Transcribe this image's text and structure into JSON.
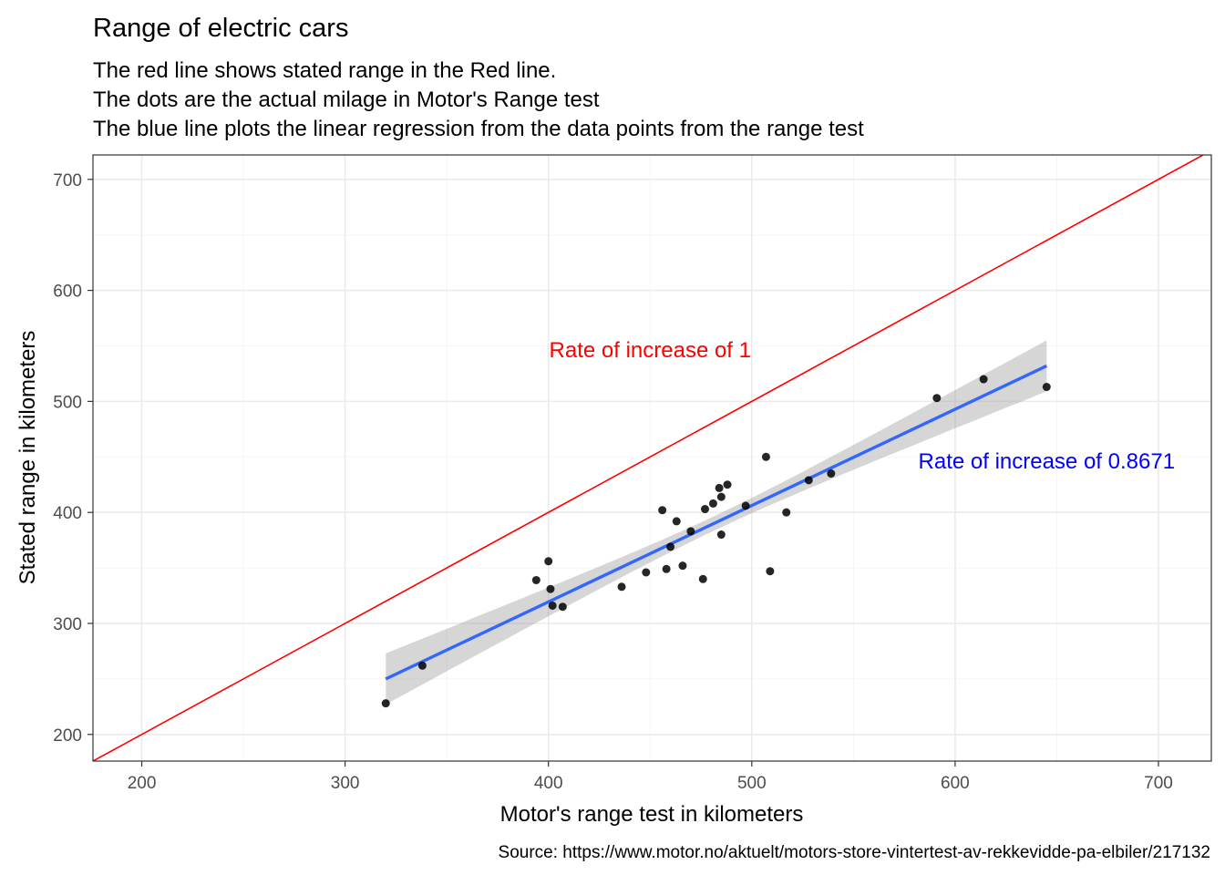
{
  "chart_data": {
    "type": "scatter",
    "title": "Range of electric cars",
    "subtitle": [
      "The red line shows stated range in the Red line.",
      "The dots are the actual milage in Motor's Range test",
      "The blue line plots the linear regression from the data points from the range test"
    ],
    "xlabel": "Motor's range test in kilometers",
    "ylabel": "Stated range in kilometers",
    "caption": "Source: https://www.motor.no/aktuelt/motors-store-vintertest-av-rekkevidde-pa-elbiler/217132",
    "xlim": [
      176,
      726
    ],
    "ylim": [
      176,
      722
    ],
    "x_ticks": [
      200,
      300,
      400,
      500,
      600,
      700
    ],
    "y_ticks": [
      200,
      300,
      400,
      500,
      600,
      700
    ],
    "grid": true,
    "colors": {
      "points": "#000000",
      "identity_line": "#FF0000",
      "regression_line": "#3366FF",
      "confidence_band": "#999999",
      "grid_major": "#EBEBEB",
      "grid_minor": "#F5F5F5",
      "panel_border": "#333333",
      "tick_text": "#4D4D4D"
    },
    "points": [
      {
        "x": 320,
        "y": 228
      },
      {
        "x": 338,
        "y": 262
      },
      {
        "x": 394,
        "y": 339
      },
      {
        "x": 400,
        "y": 356
      },
      {
        "x": 401,
        "y": 331
      },
      {
        "x": 402,
        "y": 316
      },
      {
        "x": 407,
        "y": 315
      },
      {
        "x": 436,
        "y": 333
      },
      {
        "x": 448,
        "y": 346
      },
      {
        "x": 456,
        "y": 402
      },
      {
        "x": 458,
        "y": 349
      },
      {
        "x": 460,
        "y": 369
      },
      {
        "x": 463,
        "y": 392
      },
      {
        "x": 466,
        "y": 352
      },
      {
        "x": 470,
        "y": 383
      },
      {
        "x": 476,
        "y": 340
      },
      {
        "x": 477,
        "y": 403
      },
      {
        "x": 481,
        "y": 408
      },
      {
        "x": 484,
        "y": 422
      },
      {
        "x": 485,
        "y": 414
      },
      {
        "x": 485,
        "y": 380
      },
      {
        "x": 488,
        "y": 425
      },
      {
        "x": 497,
        "y": 406
      },
      {
        "x": 507,
        "y": 450
      },
      {
        "x": 509,
        "y": 347
      },
      {
        "x": 517,
        "y": 400
      },
      {
        "x": 528,
        "y": 429
      },
      {
        "x": 539,
        "y": 435
      },
      {
        "x": 591,
        "y": 503
      },
      {
        "x": 614,
        "y": 520
      },
      {
        "x": 645,
        "y": 513
      }
    ],
    "identity_line": {
      "slope": 1,
      "intercept": 0
    },
    "regression": {
      "x_range": [
        320,
        645
      ],
      "slope": 0.8671,
      "y_at_start": 250,
      "y_at_end": 532,
      "ci_halfwidth_at_ends": 23,
      "ci_halfwidth_at_center": 6.5
    },
    "annotations": [
      {
        "text": "Rate of increase of 1",
        "x": 450,
        "y": 547,
        "color": "#FF0000"
      },
      {
        "text": "Rate of increase of 0.8671",
        "x": 645,
        "y": 447,
        "color": "#0000FF"
      }
    ]
  }
}
